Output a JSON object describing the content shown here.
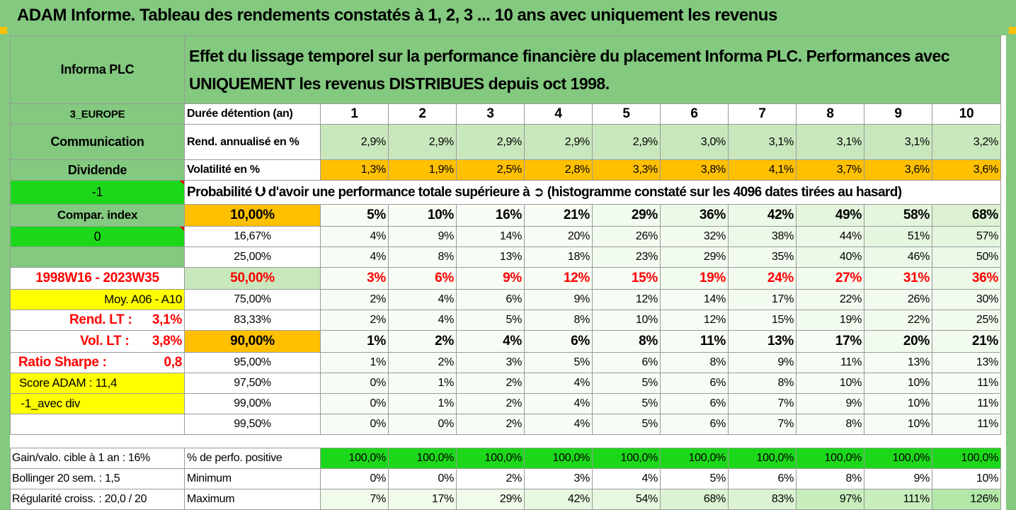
{
  "title": "ADAM Informe. Tableau des rendements constatés à 1, 2, 3 ... 10 ans avec uniquement les revenus",
  "company": "Informa PLC",
  "description": "Effet du lissage temporel sur la performance financière du placement Informa PLC. Performances avec UNIQUEMENT les revenus DISTRIBUES depuis oct 1998.",
  "left": {
    "region": "3_EUROPE",
    "sector": "Communication",
    "dividend": "Dividende",
    "minus1": "-1",
    "compar": "Compar. index",
    "zero": "0",
    "period": "1998W16 - 2023W35",
    "moy": "Moy. A06 - A10",
    "rend_lt_label": "Rend. LT :",
    "rend_lt_value": "3,1%",
    "vol_lt_label": "Vol. LT :",
    "vol_lt_value": "3,8%",
    "sharpe_label": "Ratio Sharpe :",
    "sharpe_value": "0,8",
    "score": "Score ADAM : 11,4",
    "avec_div": " -1_avec div"
  },
  "labels": {
    "duree": "Durée détention (an)",
    "rend": "Rend. annualisé en %",
    "vol": "Volatilité en %",
    "proba": "Probabilité ⮋ d'avoir une performance totale supérieure à ➲ (histogramme constaté sur les 4096 dates tirées au hasard)"
  },
  "years": [
    "1",
    "2",
    "3",
    "4",
    "5",
    "6",
    "7",
    "8",
    "9",
    "10"
  ],
  "rend": [
    "2,9%",
    "2,9%",
    "2,9%",
    "2,9%",
    "2,9%",
    "3,0%",
    "3,1%",
    "3,1%",
    "3,1%",
    "3,2%"
  ],
  "vol": [
    "1,3%",
    "1,9%",
    "2,5%",
    "2,8%",
    "3,3%",
    "3,8%",
    "4,1%",
    "3,7%",
    "3,6%",
    "3,6%"
  ],
  "prob_rows": [
    {
      "pct": "10,00%",
      "values": [
        "5%",
        "10%",
        "16%",
        "21%",
        "29%",
        "36%",
        "42%",
        "49%",
        "58%",
        "68%"
      ]
    },
    {
      "pct": "16,67%",
      "values": [
        "4%",
        "9%",
        "14%",
        "20%",
        "26%",
        "32%",
        "38%",
        "44%",
        "51%",
        "57%"
      ]
    },
    {
      "pct": "25,00%",
      "values": [
        "4%",
        "8%",
        "13%",
        "18%",
        "23%",
        "29%",
        "35%",
        "40%",
        "46%",
        "50%"
      ]
    },
    {
      "pct": "50,00%",
      "values": [
        "3%",
        "6%",
        "9%",
        "12%",
        "15%",
        "19%",
        "24%",
        "27%",
        "31%",
        "36%"
      ]
    },
    {
      "pct": "75,00%",
      "values": [
        "2%",
        "4%",
        "6%",
        "9%",
        "12%",
        "14%",
        "17%",
        "22%",
        "26%",
        "30%"
      ]
    },
    {
      "pct": "83,33%",
      "values": [
        "2%",
        "4%",
        "5%",
        "8%",
        "10%",
        "12%",
        "15%",
        "19%",
        "22%",
        "25%"
      ]
    },
    {
      "pct": "90,00%",
      "values": [
        "1%",
        "2%",
        "4%",
        "6%",
        "8%",
        "11%",
        "13%",
        "17%",
        "20%",
        "21%"
      ]
    },
    {
      "pct": "95,00%",
      "values": [
        "1%",
        "2%",
        "3%",
        "5%",
        "6%",
        "8%",
        "9%",
        "11%",
        "13%",
        "13%"
      ]
    },
    {
      "pct": "97,50%",
      "values": [
        "0%",
        "1%",
        "2%",
        "4%",
        "5%",
        "6%",
        "8%",
        "10%",
        "10%",
        "11%"
      ]
    },
    {
      "pct": "99,00%",
      "values": [
        "0%",
        "1%",
        "2%",
        "4%",
        "5%",
        "6%",
        "7%",
        "9%",
        "10%",
        "11%"
      ]
    },
    {
      "pct": "99,50%",
      "values": [
        "0%",
        "0%",
        "2%",
        "4%",
        "5%",
        "6%",
        "7%",
        "8%",
        "10%",
        "11%"
      ]
    }
  ],
  "bottom": {
    "gain_label": "Gain/valo. cible à 1 an :  16%",
    "boll_label": "Bollinger 20 sem. :  1,5",
    "regul_label": "Régularité croiss. : 20,0 / 20",
    "pos_label": "% de perfo. positive",
    "min_label": "Minimum",
    "max_label": "Maximum",
    "pos": [
      "100,0%",
      "100,0%",
      "100,0%",
      "100,0%",
      "100,0%",
      "100,0%",
      "100,0%",
      "100,0%",
      "100,0%",
      "100,0%"
    ],
    "min": [
      "0%",
      "0%",
      "2%",
      "3%",
      "4%",
      "5%",
      "6%",
      "8%",
      "9%",
      "10%"
    ],
    "max": [
      "7%",
      "17%",
      "29%",
      "42%",
      "54%",
      "68%",
      "83%",
      "97%",
      "111%",
      "126%"
    ]
  },
  "colors": {
    "header_green": "#83c97f",
    "light_green": "#c9e7bd",
    "bright_green": "#1dd81a",
    "orange": "#ffc000",
    "yellow": "#ffff00",
    "red": "#ff0000"
  }
}
